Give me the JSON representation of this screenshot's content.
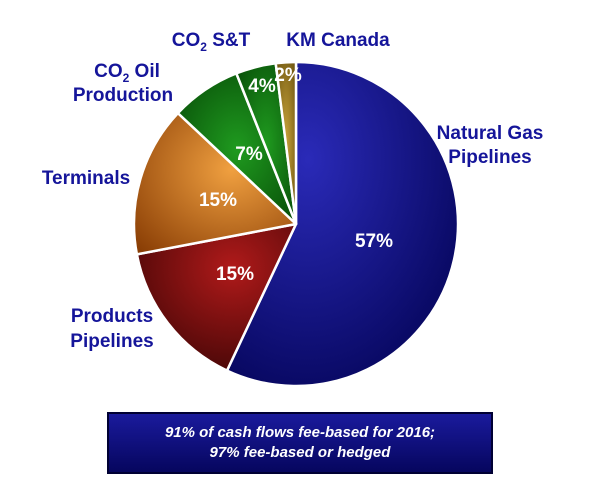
{
  "chart_data": {
    "type": "pie",
    "categories": [
      "Natural Gas Pipelines",
      "Products Pipelines",
      "Terminals",
      "CO2 Oil Production",
      "CO2 S&T",
      "KM Canada"
    ],
    "values": [
      57,
      15,
      15,
      7,
      4,
      2
    ],
    "value_labels": [
      "57%",
      "15%",
      "15%",
      "7%",
      "4%",
      "2%"
    ],
    "colors": [
      "#0c0c7c",
      "#7a0d0d",
      "#d2690e",
      "#0b6a0b",
      "#0a600a",
      "#8a7216"
    ]
  },
  "labels": {
    "natural_gas_1": "Natural Gas",
    "natural_gas_2": "Pipelines",
    "products_1": "Products",
    "products_2": "Pipelines",
    "terminals": "Terminals",
    "co2oil_co": "CO",
    "co2oil_sub": "2",
    "co2oil_rest": " Oil",
    "co2oil_2": "Production",
    "co2st_co": "CO",
    "co2st_sub": "2",
    "co2st_rest": " S&T",
    "km_canada": "KM Canada"
  },
  "note": {
    "line1": "91% of cash flows fee-based for 2016;",
    "line2": "97% fee-based or hedged"
  }
}
